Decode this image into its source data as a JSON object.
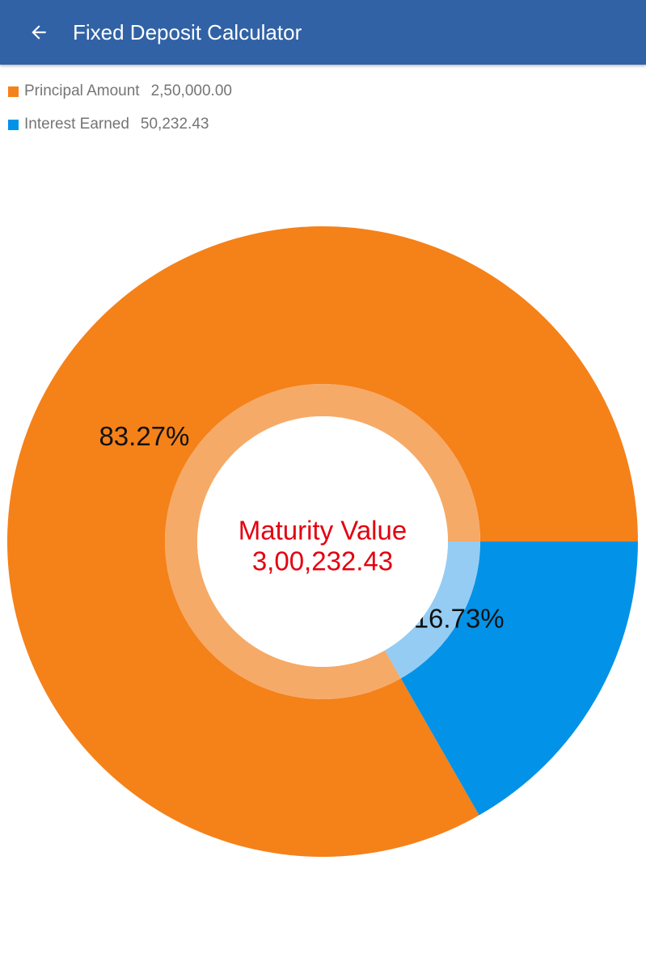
{
  "app_bar": {
    "title": "Fixed Deposit Calculator",
    "back_icon": "arrow-back-icon",
    "background_color": "#3162a6"
  },
  "legend": [
    {
      "label": "Principal Amount",
      "value": "2,50,000.00",
      "color": "#f58119"
    },
    {
      "label": "Interest Earned",
      "value": "50,232.43",
      "color": "#0292e8"
    }
  ],
  "chart_data": {
    "type": "pie",
    "title": "",
    "center_text": [
      "Maturity Value",
      "3,00,232.43"
    ],
    "center_text_color": "#e3000f",
    "slices": [
      {
        "label": "Principal Amount",
        "value": 250000.0,
        "percent_label": "83.27%",
        "color": "#f58119",
        "inner_ring_color": "#f6aa67"
      },
      {
        "label": "Interest Earned",
        "value": 50232.43,
        "percent_label": "16.73%",
        "color": "#0292e8",
        "inner_ring_color": "#94ccf4"
      }
    ]
  }
}
